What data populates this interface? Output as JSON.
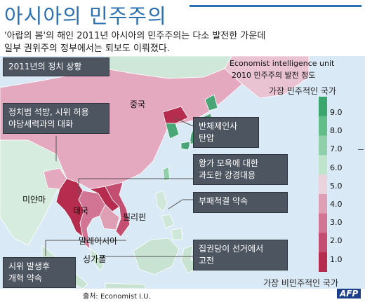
{
  "title": "아시아의 민주주의",
  "subtitle": [
    "'아랍의 봄'의 해인 2011년 아시아의 민주주의는 다소 발전한 가운데",
    "일부 권위주의 정부에서는 퇴보도 이뤄졌다."
  ],
  "year_box": "2011년의 정치 상황",
  "callouts": [
    {
      "id": "china",
      "lines": [
        "반체제인사",
        "탄압"
      ]
    },
    {
      "id": "myanmar",
      "lines": [
        "정치범 석방, 시위 허용",
        "야당세력과의 대화"
      ]
    },
    {
      "id": "thailand",
      "lines": [
        "왕가 모욕에 대한",
        "과도한 강경대응"
      ]
    },
    {
      "id": "philippines",
      "lines": [
        "부패척결 약속"
      ]
    },
    {
      "id": "singapore",
      "lines": [
        "집권당이 선거에서",
        "고전"
      ]
    },
    {
      "id": "malaysia",
      "lines": [
        "시위 발생후",
        "개혁 약속"
      ]
    }
  ],
  "places": {
    "china": "중국",
    "myanmar": "미얀마",
    "thailand": "태국",
    "philippines": "필리핀",
    "malaysia": "말레이시아",
    "singapore": "싱가폴"
  },
  "legend": {
    "title1": "Economist intelligence unit",
    "title2": "2010 민주주의 발전 정도",
    "top": "가장 민주적인 국가",
    "bottom": "가장 비민주적인 국가",
    "ticks": [
      "9.0",
      "8.0",
      "7.0",
      "6.0",
      "5.0",
      "4.0",
      "3.0",
      "2.0",
      "1.0"
    ],
    "colors": [
      "#3aa66e",
      "#62bd89",
      "#8fd0aa",
      "#bfe4cc",
      "#ead3dc",
      "#de9fb4",
      "#d27594",
      "#c44e72",
      "#b52c4f"
    ]
  },
  "source": "출처: Economist I.U.",
  "logo": "AFP",
  "colors": {
    "sea": "#d9e9f5",
    "unranked": "#dcdcdc",
    "china": "#e4a8bf",
    "myanmar": "#b52c4f",
    "thailand": "#d27594",
    "philippines": "#cfe7d8",
    "malaysia": "#c9e3d3",
    "india": "#d6ecdf",
    "korea": "#4aa876",
    "japan": "#49a575",
    "northkorea": "#b52c4f",
    "vietnam": "#c44e72",
    "laos": "#b52c4f",
    "cambodia": "#de9fb4",
    "indonesia": "#c9e3d3",
    "mongolia": "#cfe7d8",
    "taiwan": "#8fd0aa"
  }
}
